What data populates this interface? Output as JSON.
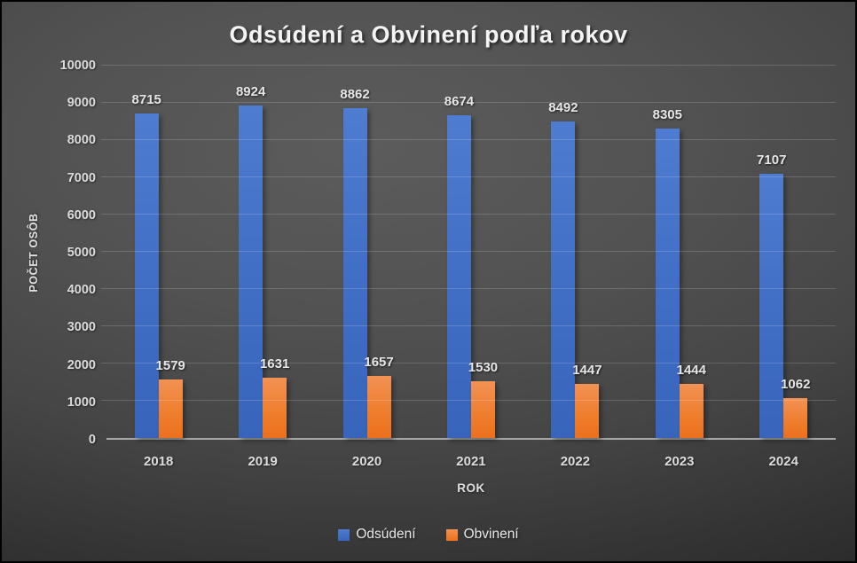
{
  "chart_data": {
    "type": "bar",
    "title": "Odsúdení a Obvinení podľa rokov",
    "xlabel": "ROK",
    "ylabel": "POČET OSÔB",
    "categories": [
      "2018",
      "2019",
      "2020",
      "2021",
      "2022",
      "2023",
      "2024"
    ],
    "series": [
      {
        "name": "Odsúdení",
        "color": "#4472C4",
        "values": [
          8715,
          8924,
          8862,
          8674,
          8492,
          8305,
          7107
        ]
      },
      {
        "name": "Obvinení",
        "color": "#ED7D31",
        "values": [
          1579,
          1631,
          1657,
          1530,
          1447,
          1444,
          1062
        ]
      }
    ],
    "ylim": [
      0,
      10000
    ],
    "yticks": [
      0,
      1000,
      2000,
      3000,
      4000,
      5000,
      6000,
      7000,
      8000,
      9000,
      10000
    ],
    "grid": true,
    "data_labels": true,
    "legend_position": "bottom"
  },
  "theme": {
    "background_center": "#5c5c5c",
    "background_edge": "#222222",
    "text_color": "#e6e6e6",
    "gridline_color": "rgba(255,255,255,0.17)",
    "axis_line_color": "#a8a8a8",
    "series_blue": "#4472C4",
    "series_orange": "#ED7D31"
  }
}
